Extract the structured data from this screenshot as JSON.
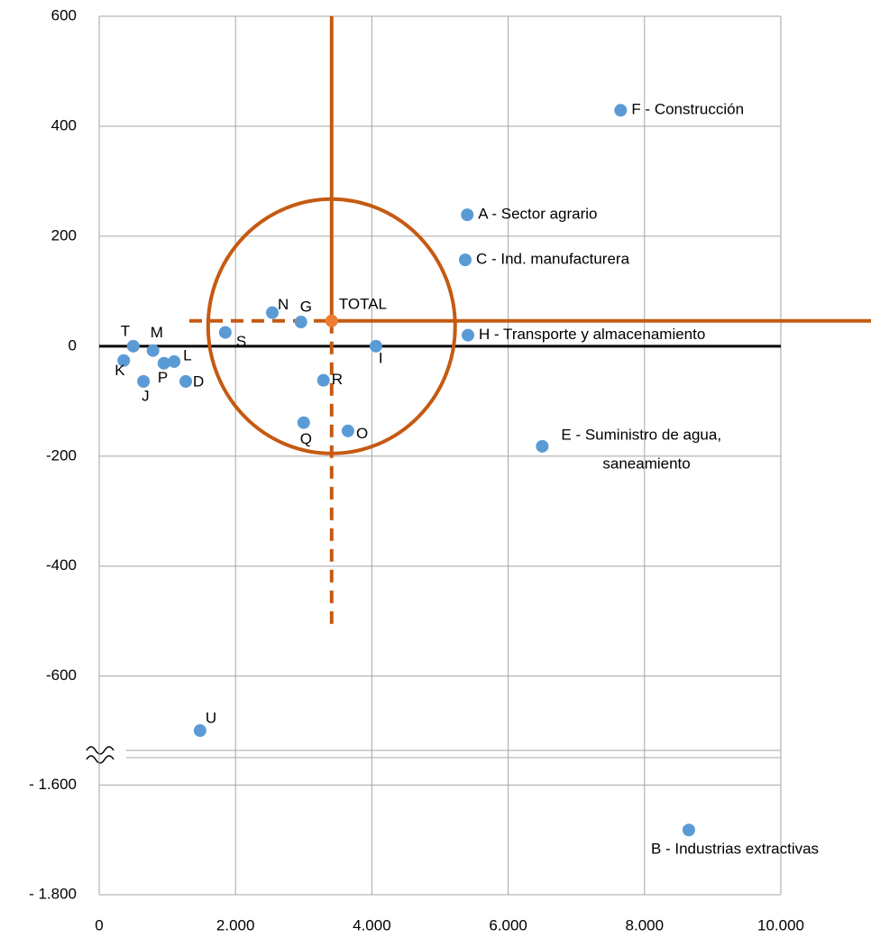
{
  "chart_data": {
    "type": "scatter",
    "xlim": [
      0,
      10000
    ],
    "xticks": [
      0,
      {
        "value": 2000,
        "label": "2.000"
      },
      {
        "value": 4000,
        "label": "4.000"
      },
      {
        "value": 6000,
        "label": "6.000"
      },
      {
        "value": 8000,
        "label": "8.000"
      },
      {
        "value": 10000,
        "label": "10.000"
      }
    ],
    "ylim": [
      -1800,
      600
    ],
    "axis_break": [
      -735,
      -1550
    ],
    "yticks": [
      600,
      400,
      200,
      0,
      -200,
      -400,
      -600,
      {
        "value": -1600,
        "label": "- 1.600"
      },
      {
        "value": -1800,
        "label": "- 1.800"
      }
    ],
    "grid": true,
    "reference_color": "#c55a11",
    "reference_point": 11,
    "points": [
      {
        "label": "F - Construcción",
        "x": 7650,
        "y": 429,
        "color": "#5b9bd5"
      },
      {
        "label": "A - Sector agrario",
        "x": 5400,
        "y": 239,
        "color": "#5b9bd5"
      },
      {
        "label": "C - Ind. manufacturera",
        "x": 5370,
        "y": 157,
        "color": "#5b9bd5"
      },
      {
        "label": "H - Transporte y almacenamiento",
        "x": 5410,
        "y": 20,
        "color": "#5b9bd5"
      },
      {
        "label": [
          "E - Suministro de agua,",
          "saneamiento"
        ],
        "x": 6500,
        "y": -182,
        "color": "#5b9bd5"
      },
      {
        "label": "B - Industrias extractivas",
        "x": 8650,
        "y": -1682,
        "color": "#5b9bd5"
      },
      {
        "label": "U",
        "x": 1480,
        "y": -699,
        "color": "#5b9bd5"
      },
      {
        "label": "N",
        "x": 2540,
        "y": 61,
        "color": "#5b9bd5"
      },
      {
        "label": "G",
        "x": 2960,
        "y": 44,
        "color": "#5b9bd5"
      },
      {
        "label": "S",
        "x": 1850,
        "y": 25,
        "color": "#5b9bd5"
      },
      {
        "label": "I",
        "x": 4060,
        "y": 0,
        "color": "#5b9bd5"
      },
      {
        "label": "TOTAL",
        "x": 3410,
        "y": 46,
        "color": "#ed7d31"
      },
      {
        "label": "R",
        "x": 3290,
        "y": -62,
        "color": "#5b9bd5"
      },
      {
        "label": "Q",
        "x": 3000,
        "y": -139,
        "color": "#5b9bd5"
      },
      {
        "label": "O",
        "x": 3650,
        "y": -154,
        "color": "#5b9bd5"
      },
      {
        "label": "T",
        "x": 500,
        "y": 0,
        "color": "#5b9bd5"
      },
      {
        "label": "M",
        "x": 790,
        "y": -8,
        "color": "#5b9bd5"
      },
      {
        "label": "K",
        "x": 360,
        "y": -26,
        "color": "#5b9bd5"
      },
      {
        "label": "L",
        "x": 1100,
        "y": -28,
        "color": "#5b9bd5"
      },
      {
        "label": "P",
        "x": 950,
        "y": -31,
        "color": "#5b9bd5"
      },
      {
        "label": "J",
        "x": 650,
        "y": -64,
        "color": "#5b9bd5"
      },
      {
        "label": "D",
        "x": 1270,
        "y": -64,
        "color": "#5b9bd5"
      }
    ]
  }
}
